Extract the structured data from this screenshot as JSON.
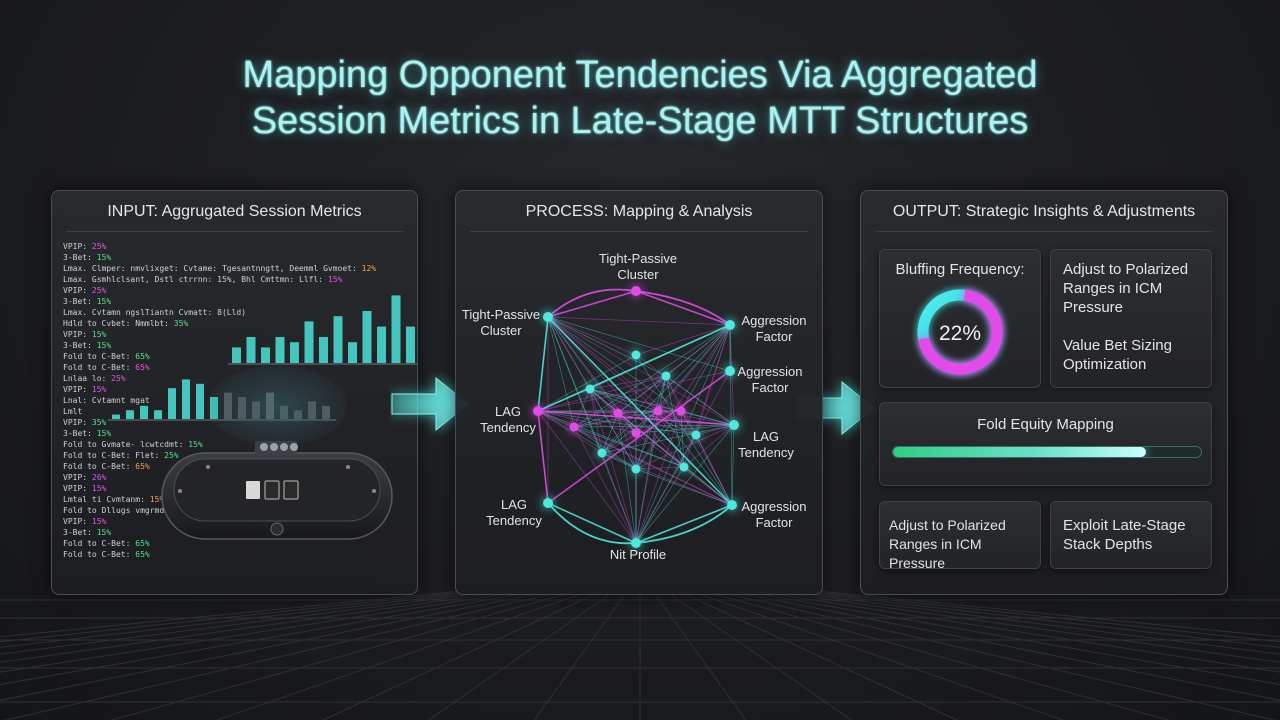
{
  "title_line1": "Mapping Opponent Tendencies Via Aggregated",
  "title_line2": "Session Metrics in Late-Stage MTT Structures",
  "input": {
    "title": "INPUT: Aggrugated Session Metrics",
    "lines": [
      {
        "label": "VPIP:",
        "value": "25%",
        "color": "pink"
      },
      {
        "label": "3-Bet:",
        "value": "15%",
        "color": "green"
      },
      {
        "label": "Lmax. Clmper: nmvlixget: Cvtame: Tgesantnngtt, Deemml Gvmoet:",
        "value": "12%",
        "color": "orange"
      },
      {
        "label": "Lmax. Gsmhlclsant, Dstl ctrrnn: 15%, Bhl Cmttmn: Llfl:",
        "value": "15%",
        "color": "pink"
      },
      {
        "label": "VPIP:",
        "value": "25%",
        "color": "pink"
      },
      {
        "label": "3-Bet:",
        "value": "15%",
        "color": "green"
      },
      {
        "label": "Lmax. Cvtamn ngslTiantn Cvmatt: 8(Lld)",
        "value": "",
        "color": "teal"
      },
      {
        "label": "Hdld to Cvbet: Nmmlbt:",
        "value": "35%",
        "color": "green"
      },
      {
        "label": "VPIP:",
        "value": "15%",
        "color": "green"
      },
      {
        "label": "3-Bet:",
        "value": "15%",
        "color": "green"
      },
      {
        "label": "Fold to C-Bet:",
        "value": "65%",
        "color": "green"
      },
      {
        "label": "Fold to C-Bet:",
        "value": "65%",
        "color": "pink"
      },
      {
        "label": "Lnlaa lo:",
        "value": "25%",
        "color": "pink"
      },
      {
        "label": "VPIP:",
        "value": "15%",
        "color": "pink"
      },
      {
        "label": "Lnal: Cvtamnt mgat",
        "value": "",
        "color": "teal"
      },
      {
        "label": "Lmlt",
        "value": "",
        "color": "teal"
      },
      {
        "label": "VPIP:",
        "value": "35%",
        "color": "green"
      },
      {
        "label": "3-Bet:",
        "value": "15%",
        "color": "green"
      },
      {
        "label": "Fold to Gvmate- lcwtcdmt:",
        "value": "15%",
        "color": "green"
      },
      {
        "label": "Fold to C-Bet: Flet:",
        "value": "25%",
        "color": "green"
      },
      {
        "label": "Fold to C-Bet:",
        "value": "65%",
        "color": "orange"
      },
      {
        "label": "VPIP:",
        "value": "26%",
        "color": "pink"
      },
      {
        "label": "VPIP:",
        "value": "15%",
        "color": "pink"
      },
      {
        "label": "Lmtal ti Cvmtanm:",
        "value": "15%",
        "color": "orange"
      },
      {
        "label": "Fold to Dllugs vmgrmdmtlmn:",
        "value": "35%",
        "color": "green"
      },
      {
        "label": "VPIP:",
        "value": "15%",
        "color": "pink"
      },
      {
        "label": "3-Bet:",
        "value": "15%",
        "color": "green"
      },
      {
        "label": "Fold to C-Bet:",
        "value": "65%",
        "color": "green"
      },
      {
        "label": "Fold to C-Bet:",
        "value": "65%",
        "color": "green"
      }
    ],
    "chart_data": [
      {
        "type": "bar",
        "values": [
          3,
          5,
          3,
          5,
          4,
          8,
          5,
          9,
          4,
          10,
          7,
          13,
          7,
          12
        ],
        "colors": "teal"
      },
      {
        "type": "bar",
        "values": [
          1,
          2,
          3,
          2,
          7,
          9,
          8,
          5,
          6,
          5,
          4,
          6,
          3,
          2,
          4,
          3
        ],
        "colors": "mixed"
      }
    ]
  },
  "process": {
    "title": "PROCESS: Mapping & Analysis",
    "labels": {
      "top": "Tight-Passive\nCluster",
      "left_top": "Tight-Passive\nCluster",
      "left_mid": "LAG\nTendency",
      "left_bottom": "LAG\nTendency",
      "bottom": "Nit Profile",
      "right1": "Aggression\nFactor",
      "right2": "Aggression\nFactor",
      "right3": "LAG\nTendency",
      "right4": "Aggression\nFactor"
    }
  },
  "output": {
    "title": "OUTPUT: Strategic Insights & Adjustments",
    "bluff_label": "Bluffing Frequency:",
    "bluff_value": "22%",
    "bluff_fraction": 0.22,
    "card1_a": "Adjust to Polarized Ranges in ICM Pressure",
    "card1_b": "Value Bet Sizing Optimization",
    "fold_equity_label": "Fold Equity Mapping",
    "fold_equity_fraction": 0.82,
    "card3": "Adjust to Polarized Ranges in ICM Pressure",
    "card4": "Exploit Late-Stage Stack Depths"
  },
  "colors": {
    "accent_teal": "#5ee8e0",
    "accent_pink": "#e24be6",
    "accent_green": "#2fd080"
  }
}
